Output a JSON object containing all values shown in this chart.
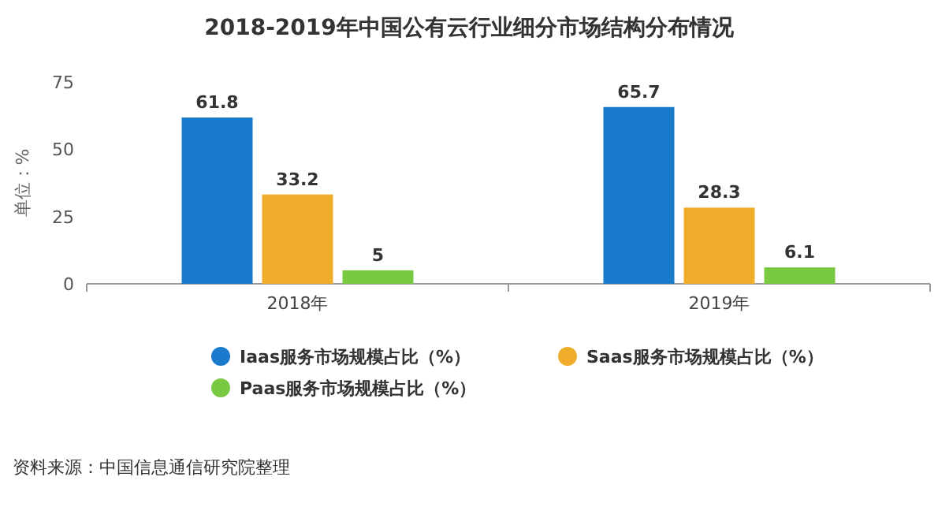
{
  "chart_data": {
    "type": "bar",
    "title": "2018-2019年中国公有云行业细分市场结构分布情况",
    "ylabel": "单位：%",
    "categories": [
      "2018年",
      "2019年"
    ],
    "series": [
      {
        "name": "Iaas服务市场规模占比（%）",
        "color": "#1a7acc",
        "values": [
          61.8,
          65.7
        ]
      },
      {
        "name": "Saas服务市场规模占比（%）",
        "color": "#f0ad2b",
        "values": [
          33.2,
          28.3
        ]
      },
      {
        "name": "Paas服务市场规模占比（%）",
        "color": "#7ac943",
        "values": [
          5,
          6.1
        ]
      }
    ],
    "ylim": [
      0,
      75
    ],
    "yticks": [
      0,
      25,
      50,
      75
    ],
    "grid": false,
    "data_labels": true,
    "legend": "bottom",
    "annotations": [
      "资料来源：中国信息通信研究院整理"
    ]
  }
}
